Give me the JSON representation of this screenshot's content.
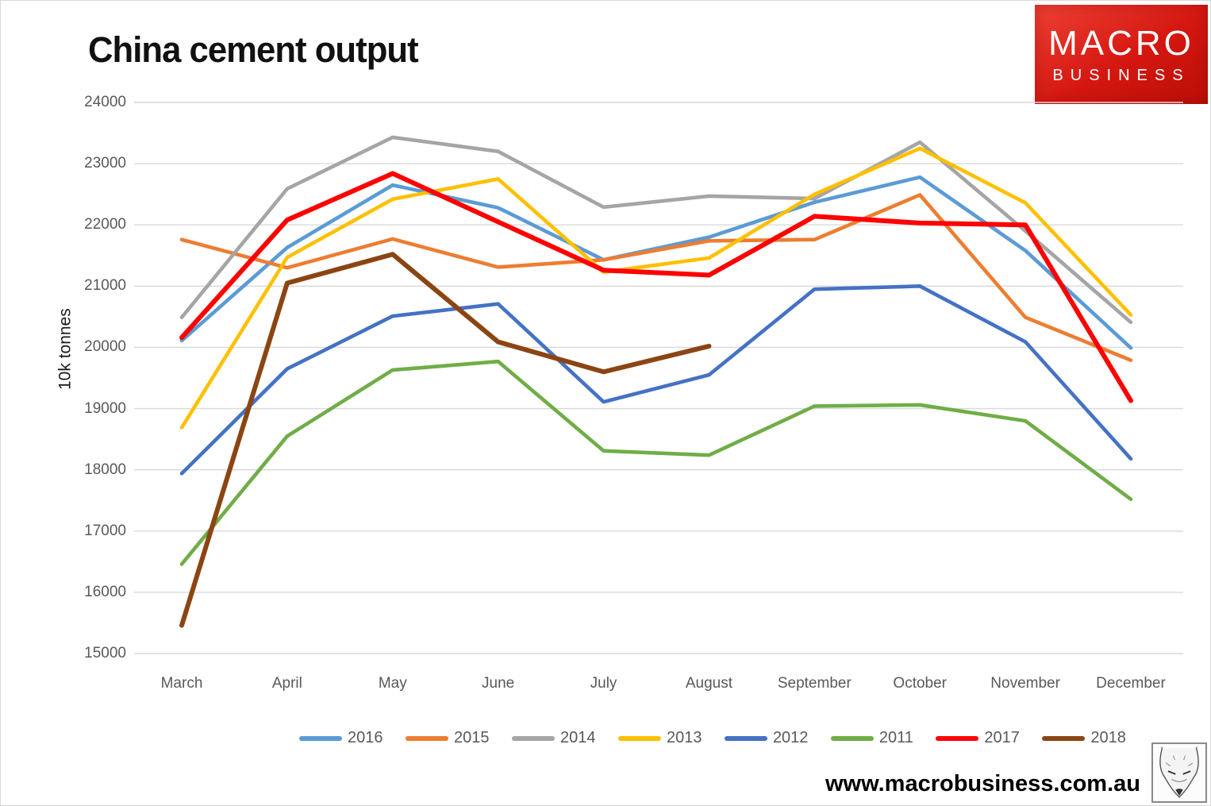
{
  "title": "China cement output",
  "branding": {
    "logo_line1": "MACRO",
    "logo_line2": "BUSINESS",
    "logo_bg_color": "#d41710",
    "url": "www.macrobusiness.com.au",
    "wolf_icon": "wolf-head-sketch"
  },
  "chart_data": {
    "type": "line",
    "title": "China cement output",
    "xlabel": "",
    "ylabel": "10k tonnes",
    "ylim": [
      15000,
      24000
    ],
    "yticks": [
      24000,
      23000,
      22000,
      21000,
      20000,
      19000,
      18000,
      17000,
      16000,
      15000
    ],
    "grid": "horizontal-only",
    "grid_color": "#d9d9d9",
    "axis_text_color": "#595959",
    "legend_position": "bottom",
    "x_categories": [
      "March",
      "April",
      "May",
      "June",
      "July",
      "August",
      "September",
      "October",
      "November",
      "December"
    ],
    "series": [
      {
        "name": "2016",
        "color": "#5B9BD5",
        "thick": false,
        "values": [
          20110,
          21630,
          22650,
          22280,
          21430,
          21800,
          22370,
          22780,
          21580,
          19990
        ]
      },
      {
        "name": "2015",
        "color": "#ED7D31",
        "thick": false,
        "values": [
          21760,
          21300,
          21770,
          21310,
          21430,
          21740,
          21760,
          22490,
          20490,
          19790
        ]
      },
      {
        "name": "2014",
        "color": "#A5A5A5",
        "thick": false,
        "values": [
          20490,
          22590,
          23430,
          23200,
          22290,
          22470,
          22430,
          23350,
          21900,
          20410
        ]
      },
      {
        "name": "2013",
        "color": "#FFC000",
        "thick": false,
        "values": [
          18690,
          21470,
          22420,
          22750,
          21230,
          21460,
          22500,
          23250,
          22360,
          20530
        ]
      },
      {
        "name": "2012",
        "color": "#4472C4",
        "thick": false,
        "values": [
          17940,
          19650,
          20510,
          20710,
          19110,
          19550,
          20950,
          21000,
          20090,
          18180
        ]
      },
      {
        "name": "2011",
        "color": "#70AD47",
        "thick": false,
        "values": [
          16460,
          18550,
          19630,
          19770,
          18310,
          18240,
          19040,
          19060,
          18800,
          17520
        ]
      },
      {
        "name": "2017",
        "color": "#FF0000",
        "thick": true,
        "values": [
          20160,
          22080,
          22840,
          22050,
          21260,
          21180,
          22140,
          22030,
          22000,
          19130
        ]
      },
      {
        "name": "2018",
        "color": "#8B4513",
        "thick": true,
        "values": [
          15460,
          21050,
          21520,
          20090,
          19600,
          20020
        ]
      }
    ]
  }
}
